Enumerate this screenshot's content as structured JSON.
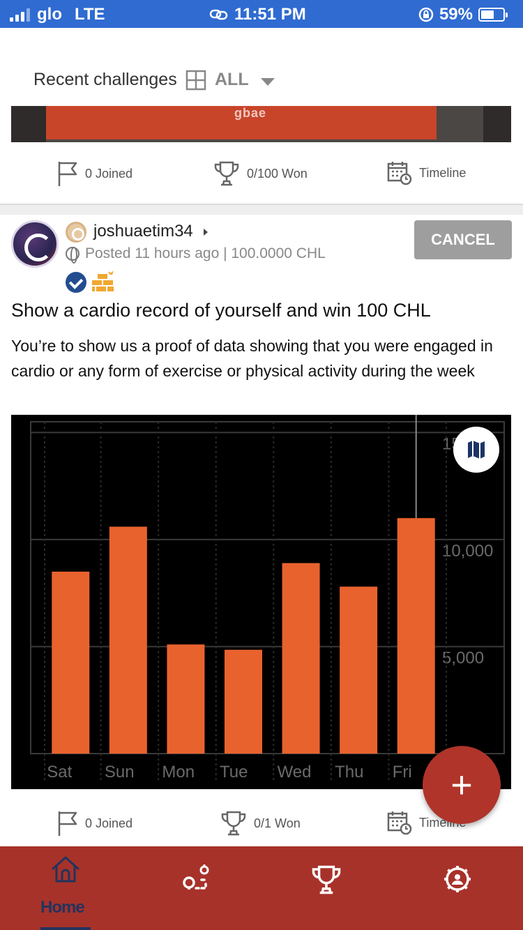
{
  "status_bar": {
    "carrier": "glo",
    "network": "LTE",
    "time": "11:51 PM",
    "battery_percent": "59%",
    "battery_level": 0.59
  },
  "header": {
    "title": "Recent challenges",
    "filter_label": "ALL"
  },
  "card1": {
    "banner_logo": "gbae",
    "joined": "0 Joined",
    "won": "0/100 Won",
    "timeline": "Timeline"
  },
  "card2": {
    "username": "joshuaetim34",
    "posted": "Posted 11 hours ago | 100.0000 CHL",
    "cancel_label": "CANCEL",
    "title": "Show a cardio record of yourself and win 100 CHL",
    "description": "You’re to show us a proof of data showing that you were engaged in cardio or any form of exercise or physical activity during the week",
    "joined": "0 Joined",
    "won": "0/1 Won",
    "timeline": "Timeline"
  },
  "chart_data": {
    "type": "bar",
    "categories": [
      "Sat",
      "Sun",
      "Mon",
      "Tue",
      "Wed",
      "Thu",
      "Fri"
    ],
    "values": [
      8500,
      10600,
      5100,
      4850,
      8900,
      7800,
      11000
    ],
    "yticks": [
      "5,000",
      "10,000",
      "15,000"
    ],
    "ytick_values": [
      5000,
      10000,
      15000
    ],
    "ylim": [
      0,
      15500
    ],
    "bar_color": "#e8622e",
    "background": "#000000",
    "grid": true
  },
  "fab": {
    "label": "+"
  },
  "bottom_nav": {
    "items": [
      {
        "icon": "home-icon",
        "label": "Home"
      },
      {
        "icon": "map-route-icon"
      },
      {
        "icon": "trophy-icon"
      },
      {
        "icon": "settings-icon"
      }
    ]
  },
  "colors": {
    "status_bar": "#2f6bd1",
    "nav_bar": "#a7322a",
    "fab": "#b0342a",
    "active_nav": "#23335e"
  }
}
